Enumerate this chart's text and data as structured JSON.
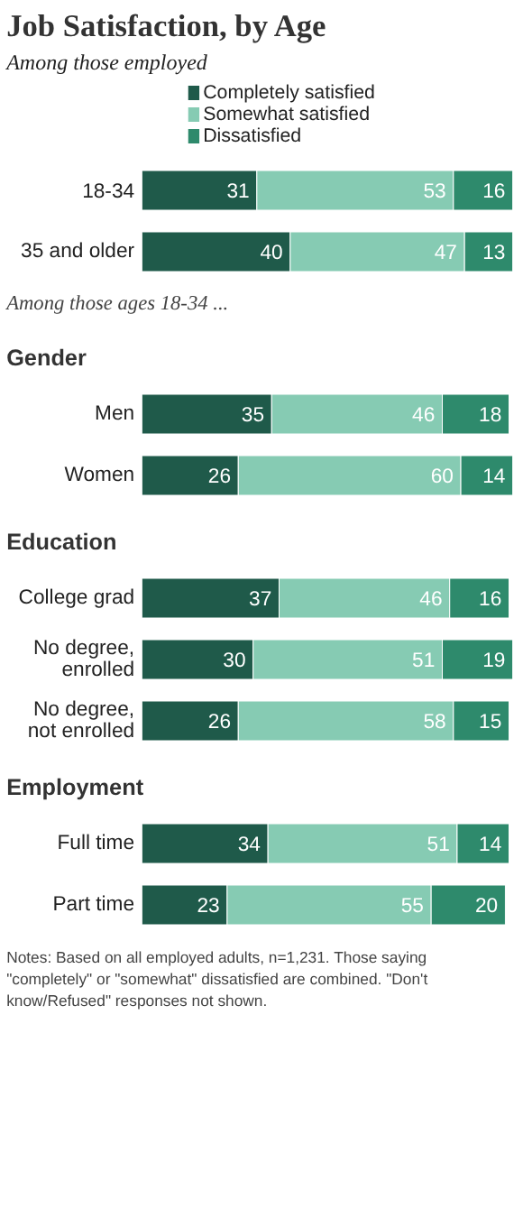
{
  "chart_data": [
    {
      "type": "bar",
      "orientation": "horizontal",
      "stacked": true,
      "data_labels": true,
      "legend": "top",
      "title": "Job Satisfaction, by Age",
      "subtitle": "Among those employed",
      "categories": [
        "18-34",
        "35 and older"
      ],
      "series": [
        {
          "name": "Completely satisfied",
          "color": "#1f5a4a",
          "values": [
            31,
            40
          ]
        },
        {
          "name": "Somewhat satisfied",
          "color": "#86cbb3",
          "values": [
            53,
            47
          ]
        },
        {
          "name": "Dissatisfied",
          "color": "#2e8a6c",
          "values": [
            16,
            13
          ]
        }
      ],
      "annotations": [
        "Among those ages 18-34 ..."
      ]
    },
    {
      "type": "bar",
      "orientation": "horizontal",
      "stacked": true,
      "data_labels": true,
      "title": "Gender",
      "categories": [
        "Men",
        "Women"
      ],
      "series": [
        {
          "color": "#1f5a4a",
          "values": [
            35,
            26
          ]
        },
        {
          "color": "#86cbb3",
          "values": [
            46,
            60
          ]
        },
        {
          "color": "#2e8a6c",
          "values": [
            18,
            14
          ]
        }
      ]
    },
    {
      "type": "bar",
      "orientation": "horizontal",
      "stacked": true,
      "data_labels": true,
      "title": "Education",
      "categories": [
        "College grad",
        "No degree,\nenrolled",
        "No degree,\nnot enrolled"
      ],
      "series": [
        {
          "color": "#1f5a4a",
          "values": [
            37,
            30,
            26
          ]
        },
        {
          "color": "#86cbb3",
          "values": [
            46,
            51,
            58
          ]
        },
        {
          "color": "#2e8a6c",
          "values": [
            16,
            19,
            15
          ]
        }
      ]
    },
    {
      "type": "bar",
      "orientation": "horizontal",
      "stacked": true,
      "data_labels": true,
      "title": "Employment",
      "categories": [
        "Full time",
        "Part time"
      ],
      "series": [
        {
          "color": "#1f5a4a",
          "values": [
            34,
            23
          ]
        },
        {
          "color": "#86cbb3",
          "values": [
            51,
            55
          ]
        },
        {
          "color": "#2e8a6c",
          "values": [
            14,
            20
          ]
        }
      ],
      "annotations": [
        "Notes: Based on all employed adults, n=1,231. Those saying \"completely\" or \"somewhat\" dissatisfied are combined. \"Don't know/Refused\" responses not shown."
      ]
    }
  ]
}
